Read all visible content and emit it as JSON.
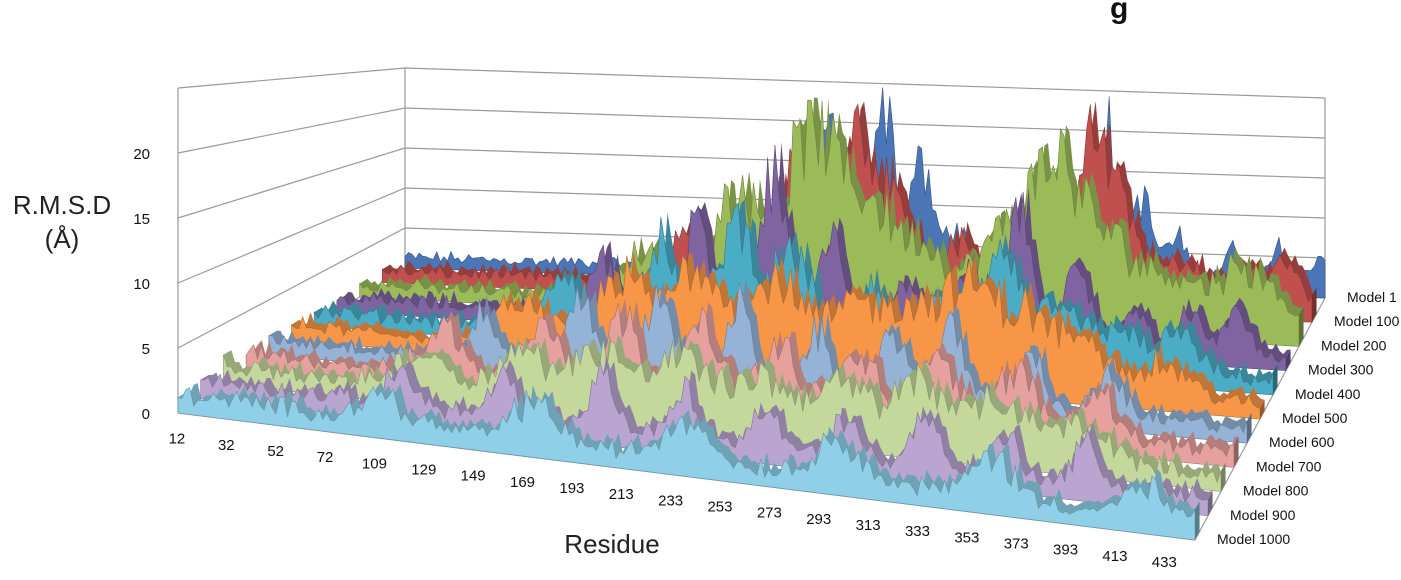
{
  "chart_data": {
    "type": "area",
    "subtype": "3d-area",
    "title": "",
    "title_visible_fragment": "g",
    "ylabel_line1": "R.M.S.D",
    "ylabel_line2": "(Å)",
    "xlabel": "Residue",
    "ylim": [
      0,
      25
    ],
    "y_ticks": [
      0,
      5,
      10,
      15,
      20
    ],
    "x_tick_labels": [
      "12",
      "32",
      "52",
      "72",
      "109",
      "129",
      "149",
      "169",
      "193",
      "213",
      "233",
      "253",
      "273",
      "293",
      "313",
      "333",
      "353",
      "373",
      "393",
      "413",
      "433"
    ],
    "grid": true,
    "series": [
      {
        "name": "Model 1",
        "color": "#4a76b8",
        "peaks": [
          [
            0.32,
            4
          ],
          [
            0.46,
            17
          ],
          [
            0.52,
            22
          ],
          [
            0.56,
            13
          ],
          [
            0.6,
            6
          ],
          [
            0.68,
            9
          ],
          [
            0.76,
            20
          ],
          [
            0.8,
            10
          ],
          [
            0.84,
            5
          ],
          [
            0.9,
            4
          ],
          [
            0.95,
            5
          ],
          [
            1.0,
            4
          ]
        ]
      },
      {
        "name": "Model 100",
        "color": "#c0504d",
        "peaks": [
          [
            0.32,
            5
          ],
          [
            0.44,
            14
          ],
          [
            0.5,
            21
          ],
          [
            0.55,
            12
          ],
          [
            0.62,
            6
          ],
          [
            0.7,
            9
          ],
          [
            0.76,
            18
          ],
          [
            0.8,
            9
          ],
          [
            0.86,
            5
          ],
          [
            0.92,
            4
          ],
          [
            0.97,
            5
          ]
        ]
      },
      {
        "name": "Model 200",
        "color": "#9bbb59",
        "peaks": [
          [
            0.3,
            5
          ],
          [
            0.4,
            12
          ],
          [
            0.48,
            19
          ],
          [
            0.54,
            11
          ],
          [
            0.6,
            7
          ],
          [
            0.68,
            8
          ],
          [
            0.74,
            17
          ],
          [
            0.8,
            8
          ],
          [
            0.86,
            5
          ],
          [
            0.92,
            4
          ],
          [
            0.96,
            5
          ]
        ]
      },
      {
        "name": "Model 300",
        "color": "#8064a2",
        "peaks": [
          [
            0.28,
            6
          ],
          [
            0.38,
            11
          ],
          [
            0.46,
            16
          ],
          [
            0.52,
            10
          ],
          [
            0.6,
            6
          ],
          [
            0.66,
            7
          ],
          [
            0.72,
            14
          ],
          [
            0.78,
            8
          ],
          [
            0.84,
            5
          ],
          [
            0.9,
            4
          ],
          [
            0.95,
            4
          ]
        ]
      },
      {
        "name": "Model 400",
        "color": "#4bacc6",
        "peaks": [
          [
            0.26,
            5
          ],
          [
            0.36,
            9
          ],
          [
            0.44,
            12
          ],
          [
            0.5,
            9
          ],
          [
            0.58,
            6
          ],
          [
            0.66,
            7
          ],
          [
            0.72,
            11
          ],
          [
            0.78,
            7
          ],
          [
            0.84,
            4
          ],
          [
            0.9,
            4
          ]
        ]
      },
      {
        "name": "Model 500",
        "color": "#f79646",
        "peaks": [
          [
            0.24,
            4
          ],
          [
            0.34,
            7
          ],
          [
            0.42,
            9
          ],
          [
            0.5,
            8
          ],
          [
            0.58,
            6
          ],
          [
            0.64,
            6
          ],
          [
            0.7,
            8
          ],
          [
            0.76,
            6
          ],
          [
            0.82,
            4
          ],
          [
            0.9,
            3
          ]
        ]
      },
      {
        "name": "Model 600",
        "color": "#95b3d7",
        "peaks": [
          [
            0.22,
            4
          ],
          [
            0.32,
            6
          ],
          [
            0.4,
            8
          ],
          [
            0.48,
            7
          ],
          [
            0.56,
            5
          ],
          [
            0.64,
            6
          ],
          [
            0.7,
            7
          ],
          [
            0.78,
            5
          ],
          [
            0.86,
            4
          ]
        ]
      },
      {
        "name": "Model 700",
        "color": "#e6a19f",
        "peaks": [
          [
            0.2,
            4
          ],
          [
            0.3,
            5
          ],
          [
            0.38,
            6
          ],
          [
            0.46,
            6
          ],
          [
            0.54,
            5
          ],
          [
            0.62,
            5
          ],
          [
            0.7,
            6
          ],
          [
            0.78,
            5
          ],
          [
            0.86,
            4
          ]
        ]
      },
      {
        "name": "Model 800",
        "color": "#c4d89b",
        "peaks": [
          [
            0.2,
            3
          ],
          [
            0.3,
            4
          ],
          [
            0.38,
            5
          ],
          [
            0.46,
            5
          ],
          [
            0.54,
            4
          ],
          [
            0.62,
            4
          ],
          [
            0.7,
            5
          ],
          [
            0.78,
            4
          ],
          [
            0.86,
            3
          ]
        ]
      },
      {
        "name": "Model 900",
        "color": "#b9a5d0",
        "peaks": [
          [
            0.2,
            3
          ],
          [
            0.3,
            3
          ],
          [
            0.4,
            4
          ],
          [
            0.48,
            4
          ],
          [
            0.56,
            3
          ],
          [
            0.64,
            3
          ],
          [
            0.72,
            4
          ],
          [
            0.8,
            3
          ],
          [
            0.88,
            3
          ]
        ]
      },
      {
        "name": "Model 1000",
        "color": "#8fd0e8",
        "peaks": [
          [
            0.2,
            2
          ],
          [
            0.35,
            3
          ],
          [
            0.5,
            3
          ],
          [
            0.65,
            3
          ],
          [
            0.8,
            3
          ],
          [
            0.95,
            2
          ]
        ]
      }
    ]
  }
}
